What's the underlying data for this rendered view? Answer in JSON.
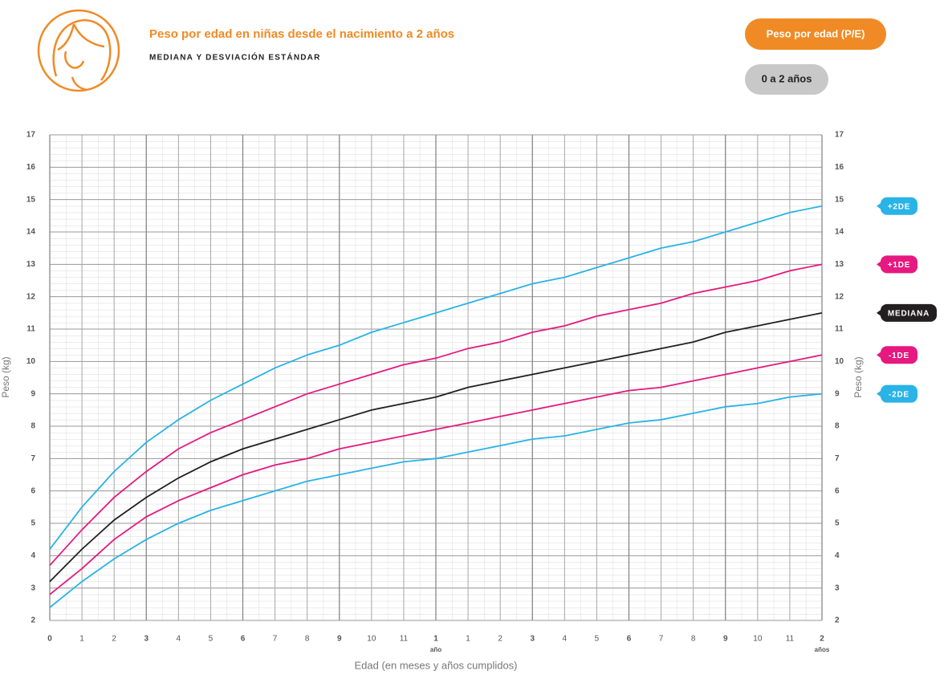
{
  "chart_data": {
    "type": "line",
    "title": "Peso por edad en niñas desde el nacimiento a 2 años",
    "subtitle": "MEDIANA Y DESVIACIÓN ESTÁNDAR",
    "buttons": [
      "Peso por edad (P/E)",
      "0 a 2 años"
    ],
    "x_label": "Edad (en meses y años cumplidos)",
    "y_label": "Peso (kg)",
    "x": [
      0,
      1,
      2,
      3,
      4,
      5,
      6,
      7,
      8,
      9,
      10,
      11,
      12,
      13,
      14,
      15,
      16,
      17,
      18,
      19,
      20,
      21,
      22,
      23,
      24
    ],
    "xlim": [
      0,
      24
    ],
    "xticks": [
      0,
      1,
      2,
      3,
      4,
      5,
      6,
      7,
      8,
      9,
      10,
      11,
      {
        "value": 12,
        "label": "1"
      },
      {
        "value": 13,
        "label": "1"
      },
      {
        "value": 14,
        "label": "2"
      },
      {
        "value": 15,
        "label": "3"
      },
      {
        "value": 16,
        "label": "4"
      },
      {
        "value": 17,
        "label": "5"
      },
      {
        "value": 18,
        "label": "6"
      },
      {
        "value": 19,
        "label": "7"
      },
      {
        "value": 20,
        "label": "8"
      },
      {
        "value": 21,
        "label": "9"
      },
      {
        "value": 22,
        "label": "10"
      },
      {
        "value": 23,
        "label": "11"
      },
      {
        "value": 24,
        "label": "2"
      }
    ],
    "xticks_bold": [
      0,
      3,
      6,
      9,
      12,
      15,
      18,
      21,
      24
    ],
    "x_tick_sublabels": [
      {
        "value": 12,
        "label": "año"
      },
      {
        "value": 24,
        "label": "años"
      }
    ],
    "ylim": [
      2,
      17
    ],
    "yticks": [
      2,
      3,
      4,
      5,
      6,
      7,
      8,
      9,
      10,
      11,
      12,
      13,
      14,
      15,
      16,
      17
    ],
    "grid": true,
    "series": [
      {
        "name": "+2DE",
        "color": "#29b3e6",
        "values": [
          4.2,
          5.5,
          6.6,
          7.5,
          8.2,
          8.8,
          9.3,
          9.8,
          10.2,
          10.5,
          10.9,
          11.2,
          11.5,
          11.8,
          12.1,
          12.4,
          12.6,
          12.9,
          13.2,
          13.5,
          13.7,
          14.0,
          14.3,
          14.6,
          14.8
        ]
      },
      {
        "name": "+1DE",
        "color": "#e5197f",
        "values": [
          3.7,
          4.8,
          5.8,
          6.6,
          7.3,
          7.8,
          8.2,
          8.6,
          9.0,
          9.3,
          9.6,
          9.9,
          10.1,
          10.4,
          10.6,
          10.9,
          11.1,
          11.4,
          11.6,
          11.8,
          12.1,
          12.3,
          12.5,
          12.8,
          13.0
        ]
      },
      {
        "name": "MEDIANA",
        "color": "#231f20",
        "values": [
          3.2,
          4.2,
          5.1,
          5.8,
          6.4,
          6.9,
          7.3,
          7.6,
          7.9,
          8.2,
          8.5,
          8.7,
          8.9,
          9.2,
          9.4,
          9.6,
          9.8,
          10.0,
          10.2,
          10.4,
          10.6,
          10.9,
          11.1,
          11.3,
          11.5
        ]
      },
      {
        "name": "-1DE",
        "color": "#e5197f",
        "values": [
          2.8,
          3.6,
          4.5,
          5.2,
          5.7,
          6.1,
          6.5,
          6.8,
          7.0,
          7.3,
          7.5,
          7.7,
          7.9,
          8.1,
          8.3,
          8.5,
          8.7,
          8.9,
          9.1,
          9.2,
          9.4,
          9.6,
          9.8,
          10.0,
          10.2
        ]
      },
      {
        "name": "-2DE",
        "color": "#29b3e6",
        "values": [
          2.4,
          3.2,
          3.9,
          4.5,
          5.0,
          5.4,
          5.7,
          6.0,
          6.3,
          6.5,
          6.7,
          6.9,
          7.0,
          7.2,
          7.4,
          7.6,
          7.7,
          7.9,
          8.1,
          8.2,
          8.4,
          8.6,
          8.7,
          8.9,
          9.0
        ]
      }
    ]
  }
}
